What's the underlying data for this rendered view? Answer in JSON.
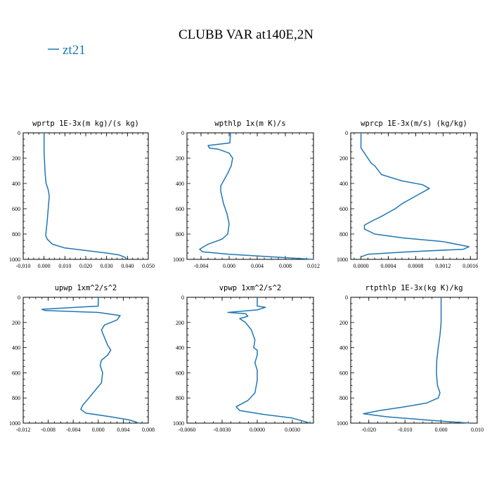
{
  "title": "CLUBB VAR at140E,2N",
  "legend": [
    {
      "label": "zt21",
      "color": "#1f77b4"
    }
  ],
  "chart_data": [
    {
      "type": "line",
      "title": "wprtp  1E-3x(m kg)/(s kg)",
      "xlim": [
        -0.01,
        0.05
      ],
      "ylim": [
        1000,
        0
      ],
      "xticks": [
        -0.01,
        0.0,
        0.01,
        0.02,
        0.03,
        0.04,
        0.05
      ],
      "xtick_labels": [
        "-0.010",
        "0.000",
        "0.010",
        "0.020",
        "0.030",
        "0.040",
        "0.050"
      ],
      "yticks": [
        0,
        200,
        400,
        600,
        800,
        1000
      ],
      "ytick_labels": [
        "0",
        "200",
        "400",
        "600",
        "800",
        "1000"
      ],
      "series": [
        {
          "name": "zt21",
          "color": "#1f77b4",
          "x": [
            0.0,
            0.0,
            0.0005,
            0.001,
            0.002,
            0.0025,
            0.002,
            0.0015,
            0.001,
            0.0008,
            0.0015,
            0.004,
            0.01,
            0.02,
            0.03,
            0.036,
            0.039,
            0.0395
          ],
          "y": [
            0,
            150,
            320,
            400,
            450,
            500,
            600,
            700,
            780,
            810,
            840,
            880,
            910,
            930,
            950,
            965,
            985,
            1000
          ]
        }
      ]
    },
    {
      "type": "line",
      "title": "wpthlp  1x(m K)/s",
      "xlim": [
        -0.006,
        0.012
      ],
      "ylim": [
        1000,
        0
      ],
      "xticks": [
        -0.004,
        0.0,
        0.004,
        0.008,
        0.012
      ],
      "xtick_labels": [
        "-0.004",
        "0.000",
        "0.004",
        "0.008",
        "0.012"
      ],
      "yticks": [
        0,
        200,
        400,
        600,
        800,
        1000
      ],
      "ytick_labels": [
        "0",
        "200",
        "400",
        "600",
        "800",
        "1000"
      ],
      "series": [
        {
          "name": "zt21",
          "color": "#1f77b4",
          "x": [
            0.0002,
            0.0001,
            -0.003,
            -0.0028,
            -0.0015,
            0.0,
            0.0005,
            0.0003,
            -0.0002,
            -0.0008,
            -0.0012,
            -0.0012,
            -0.0008,
            -0.0003,
            0.0,
            -0.0002,
            -0.001,
            -0.003,
            -0.0042,
            -0.0038,
            0.0,
            0.006,
            0.012
          ],
          "y": [
            0,
            80,
            100,
            120,
            130,
            160,
            200,
            260,
            320,
            380,
            420,
            460,
            560,
            640,
            720,
            800,
            840,
            880,
            920,
            940,
            960,
            980,
            1000
          ]
        }
      ]
    },
    {
      "type": "line",
      "title": "wprcp  1E-3x(m/s) (kg/kg)",
      "xlim": [
        -0.00015,
        0.0017
      ],
      "ylim": [
        1000,
        0
      ],
      "xticks": [
        0.0,
        0.0004,
        0.0008,
        0.0012,
        0.0016
      ],
      "xtick_labels": [
        "0.0000",
        "0.0004",
        "0.0008",
        "0.0012",
        "0.0016"
      ],
      "yticks": [
        0,
        200,
        400,
        600,
        800,
        1000
      ],
      "ytick_labels": [
        "0",
        "200",
        "400",
        "600",
        "800",
        "1000"
      ],
      "series": [
        {
          "name": "zt21",
          "color": "#1f77b4",
          "x": [
            0.0,
            0.0,
            5e-05,
            0.0001,
            0.00015,
            0.0002,
            0.0003,
            0.0006,
            0.0009,
            0.001,
            0.0008,
            0.0006,
            0.0005,
            0.0003,
            0.00015,
            5e-05,
            5e-05,
            0.0002,
            0.0006,
            0.0012,
            0.00158,
            0.0015,
            0.0007,
            0.0001,
            0.0
          ],
          "y": [
            0,
            120,
            160,
            200,
            240,
            260,
            330,
            380,
            410,
            440,
            500,
            560,
            600,
            660,
            700,
            730,
            760,
            800,
            830,
            860,
            900,
            920,
            940,
            960,
            980
          ]
        }
      ]
    },
    {
      "type": "line",
      "title": "upwp  1xm^2/s^2",
      "xlim": [
        -0.012,
        0.008
      ],
      "ylim": [
        1000,
        0
      ],
      "xticks": [
        -0.012,
        -0.008,
        -0.004,
        0.0,
        0.004,
        0.008
      ],
      "xtick_labels": [
        "-0.012",
        "-0.008",
        "-0.004",
        "0.000",
        "0.004",
        "0.008"
      ],
      "yticks": [
        0,
        200,
        400,
        600,
        800,
        1000
      ],
      "ytick_labels": [
        "0",
        "200",
        "400",
        "600",
        "800",
        "1000"
      ],
      "series": [
        {
          "name": "zt21",
          "color": "#1f77b4",
          "x": [
            0.0,
            0.0,
            -0.009,
            -0.0085,
            0.0,
            0.0035,
            0.003,
            0.001,
            0.0005,
            0.001,
            0.0015,
            0.002,
            0.0015,
            0.0005,
            0.0003,
            0.0007,
            0.0005,
            -0.0005,
            -0.0015,
            -0.0025,
            -0.0028,
            -0.002,
            0.002,
            0.005,
            0.0065
          ],
          "y": [
            0,
            70,
            95,
            105,
            120,
            145,
            180,
            220,
            260,
            320,
            380,
            420,
            460,
            500,
            540,
            600,
            680,
            740,
            800,
            860,
            890,
            920,
            950,
            975,
            1000
          ]
        }
      ]
    },
    {
      "type": "line",
      "title": "vpwp  1xm^2/s^2",
      "xlim": [
        -0.006,
        0.0048
      ],
      "ylim": [
        1000,
        0
      ],
      "xticks": [
        -0.006,
        -0.003,
        0.0,
        0.003
      ],
      "xtick_labels": [
        "-0.0060",
        "-0.0030",
        "0.0000",
        "0.0030"
      ],
      "yticks": [
        0,
        200,
        400,
        600,
        800,
        1000
      ],
      "ytick_labels": [
        "0",
        "200",
        "400",
        "600",
        "800",
        "1000"
      ],
      "series": [
        {
          "name": "zt21",
          "color": "#1f77b4",
          "x": [
            0.0,
            0.0,
            0.0007,
            0.0,
            -0.0025,
            -0.001,
            -0.0008,
            -0.0015,
            -0.001,
            -0.0005,
            -0.0002,
            -0.0003,
            0.0,
            0.0,
            -0.0002,
            0.0,
            0.0,
            -0.0002,
            -0.0008,
            -0.0018,
            -0.0015,
            0.0005,
            0.003,
            0.0045
          ],
          "y": [
            0,
            70,
            80,
            100,
            120,
            130,
            150,
            170,
            200,
            260,
            340,
            400,
            420,
            460,
            520,
            580,
            660,
            760,
            820,
            870,
            900,
            930,
            960,
            1000
          ]
        }
      ]
    },
    {
      "type": "line",
      "title": "rtpthlp  1E-3x(kg K)/kg",
      "xlim": [
        -0.025,
        0.01
      ],
      "ylim": [
        1000,
        0
      ],
      "xticks": [
        -0.02,
        -0.01,
        0.0,
        0.01
      ],
      "xtick_labels": [
        "-0.020",
        "-0.010",
        "0.000",
        "0.010"
      ],
      "yticks": [
        0,
        200,
        400,
        600,
        800,
        1000
      ],
      "ytick_labels": [
        "0",
        "200",
        "400",
        "600",
        "800",
        "1000"
      ],
      "series": [
        {
          "name": "zt21",
          "color": "#1f77b4",
          "x": [
            0.0,
            0.0,
            -0.0003,
            -0.0008,
            -0.0012,
            -0.0013,
            -0.001,
            -0.0003,
            -0.0008,
            -0.004,
            -0.01,
            -0.017,
            -0.0215,
            -0.015,
            -0.002,
            0.008
          ],
          "y": [
            0,
            200,
            300,
            400,
            500,
            600,
            700,
            760,
            800,
            840,
            870,
            900,
            925,
            950,
            980,
            1000
          ]
        }
      ]
    }
  ]
}
